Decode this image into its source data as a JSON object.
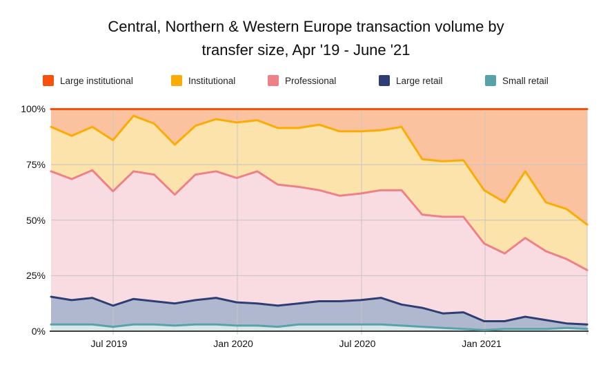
{
  "title": {
    "line1": "Central, Northern & Western Europe transaction volume by",
    "line2": "transfer size, Apr '19 - June '21"
  },
  "legend": [
    {
      "label": "Large institutional",
      "color": "#F8500D"
    },
    {
      "label": "Institutional",
      "color": "#FBAC04"
    },
    {
      "label": "Professional",
      "color": "#EE8087"
    },
    {
      "label": "Large retail",
      "color": "#2C3E73"
    },
    {
      "label": "Small retail",
      "color": "#58A3A9"
    }
  ],
  "axes": {
    "y_ticks": [
      "100%",
      "75%",
      "50%",
      "25%",
      "0%"
    ],
    "x_ticks": [
      "Jul 2019",
      "Jan 2020",
      "Jul 2020",
      "Jan 2021"
    ]
  },
  "chart_data": {
    "type": "area",
    "stacked": true,
    "percent_stacked": true,
    "title": "Central, Northern & Western Europe transaction volume by transfer size, Apr '19 - June '21",
    "xlabel": "",
    "ylabel": "",
    "ylim": [
      0,
      100
    ],
    "grid": true,
    "legend_position": "top",
    "x": [
      "Apr 2019",
      "May 2019",
      "Jun 2019",
      "Jul 2019",
      "Aug 2019",
      "Sep 2019",
      "Oct 2019",
      "Nov 2019",
      "Dec 2019",
      "Jan 2020",
      "Feb 2020",
      "Mar 2020",
      "Apr 2020",
      "May 2020",
      "Jun 2020",
      "Jul 2020",
      "Aug 2020",
      "Sep 2020",
      "Oct 2020",
      "Nov 2020",
      "Dec 2020",
      "Jan 2021",
      "Feb 2021",
      "Mar 2021",
      "Apr 2021",
      "May 2021",
      "Jun 2021"
    ],
    "x_tick_labels": [
      "Jul 2019",
      "Jan 2020",
      "Jul 2020",
      "Jan 2021"
    ],
    "y_tick_labels": [
      "0%",
      "25%",
      "50%",
      "75%",
      "100%"
    ],
    "series": [
      {
        "name": "Small retail",
        "color": "#58A3A9",
        "fill": "#D8E8E9",
        "values": [
          3,
          3,
          3,
          2,
          3,
          3,
          2.5,
          3,
          3,
          2.5,
          2.5,
          2,
          3,
          3,
          3,
          3,
          3,
          2.5,
          2,
          1.5,
          1,
          0.5,
          1,
          1,
          1,
          1.5,
          1
        ]
      },
      {
        "name": "Large retail",
        "color": "#2C3E73",
        "fill": "#AFB8CE",
        "values": [
          12.5,
          11,
          12,
          9.5,
          11.5,
          10.5,
          10,
          11,
          12,
          10.5,
          10,
          9.5,
          9.5,
          10.5,
          10.5,
          11,
          12,
          9.5,
          8.5,
          6.5,
          7.5,
          4,
          3.5,
          5.5,
          4,
          2,
          2
        ]
      },
      {
        "name": "Professional",
        "color": "#EE8087",
        "fill": "#F9DCE1",
        "values": [
          56.5,
          54.5,
          57.5,
          51.5,
          57.5,
          57,
          49,
          56.5,
          57,
          56,
          59.5,
          54.5,
          52.5,
          50,
          47.5,
          48,
          48.5,
          51.5,
          42,
          43.5,
          43,
          35,
          30.5,
          35.5,
          31,
          29,
          24.5
        ]
      },
      {
        "name": "Institutional",
        "color": "#FBAC04",
        "fill": "#FCE3AB",
        "values": [
          20,
          19.5,
          19.5,
          23,
          25,
          23,
          22.5,
          22,
          23.5,
          25,
          23,
          25.5,
          26.5,
          29.5,
          29,
          28,
          27,
          28.5,
          25,
          25,
          25.5,
          24,
          23,
          30,
          22,
          22.5,
          20.5
        ]
      },
      {
        "name": "Large institutional",
        "color": "#F8500D",
        "fill": "#FBC2A0",
        "values": [
          8,
          12,
          8,
          14,
          3,
          6.5,
          16,
          7.5,
          4.5,
          6,
          5,
          8.5,
          8.5,
          7,
          10,
          10,
          9.5,
          8,
          22.5,
          23.5,
          23,
          36.5,
          42,
          28,
          42,
          45,
          52
        ]
      }
    ]
  }
}
